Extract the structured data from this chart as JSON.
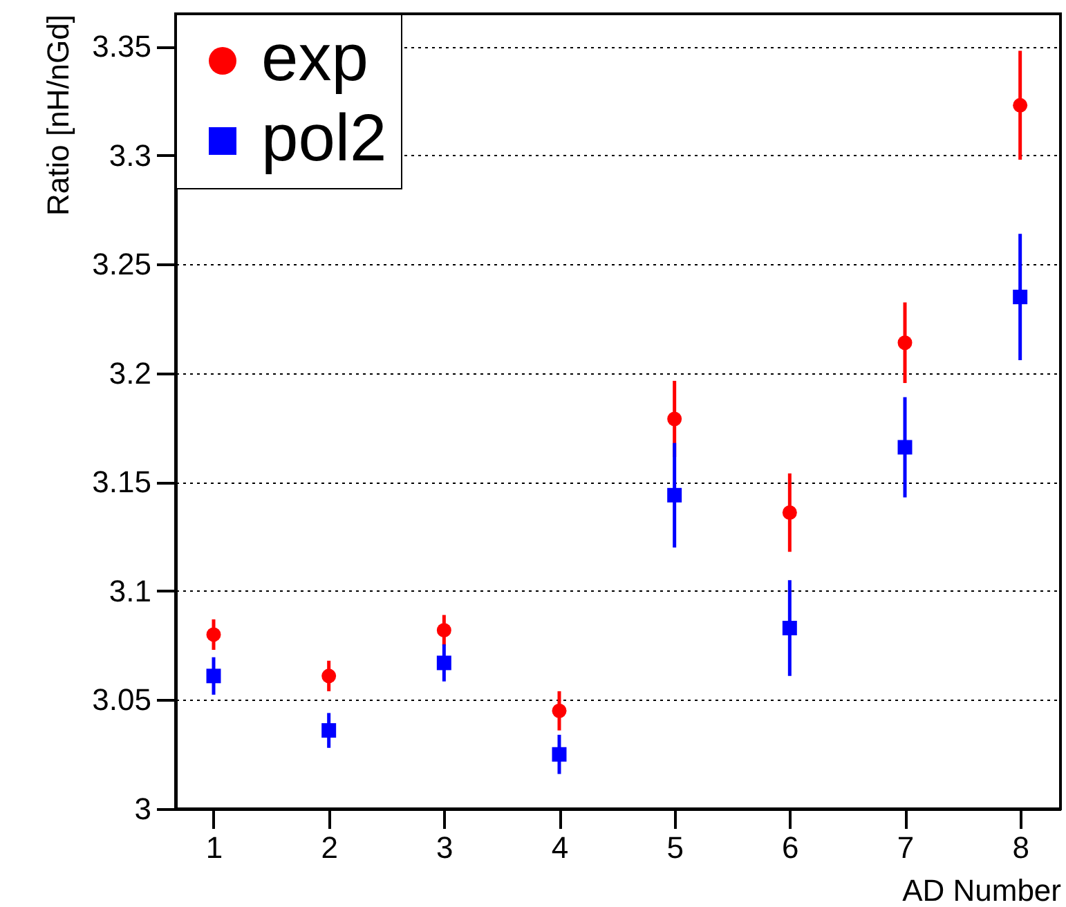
{
  "chart_data": {
    "type": "scatter",
    "xlabel": "AD Number",
    "ylabel": "Ratio [nH/nGd]",
    "x": [
      1,
      2,
      3,
      4,
      5,
      6,
      7,
      8
    ],
    "series": [
      {
        "name": "exp",
        "color": "#ff0000",
        "marker": "circle",
        "values": [
          3.08,
          3.061,
          3.082,
          3.045,
          3.179,
          3.136,
          3.214,
          3.323
        ],
        "errors": [
          0.007,
          0.007,
          0.007,
          0.009,
          0.0175,
          0.018,
          0.0185,
          0.025
        ]
      },
      {
        "name": "pol2",
        "color": "#0000ff",
        "marker": "square",
        "values": [
          3.061,
          3.036,
          3.067,
          3.025,
          3.144,
          3.083,
          3.166,
          3.235
        ],
        "errors": [
          0.0086,
          0.008,
          0.0085,
          0.009,
          0.024,
          0.022,
          0.023,
          0.029
        ]
      }
    ],
    "xlim": [
      0.67,
      8.35
    ],
    "xticks": [
      1,
      2,
      3,
      4,
      5,
      6,
      7,
      8
    ],
    "ylim": [
      3,
      3.365
    ],
    "yticks": [
      3,
      3.05,
      3.1,
      3.15,
      3.2,
      3.25,
      3.3,
      3.35
    ],
    "grid": "y",
    "legend": "top left"
  }
}
